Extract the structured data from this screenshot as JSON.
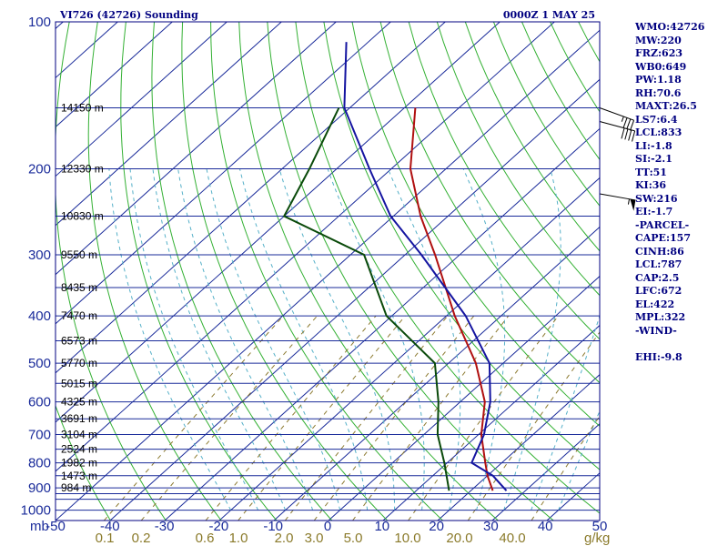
{
  "header": {
    "station": "VI726 (42726) Sounding",
    "time": "0000Z  1 MAY 25"
  },
  "stats": [
    "WMO:42726",
    "MW:220",
    "FRZ:623",
    "WB0:649",
    "PW:1.18",
    "RH:70.6",
    "MAXT:26.5",
    "LS7:6.4",
    "LCL:833",
    "LI:-1.8",
    "SI:-2.1",
    "TT:51",
    "KI:36",
    "SW:216",
    "EI:-1.7",
    "-PARCEL-",
    "CAPE:157",
    "CINH:86",
    "LCL:787",
    "CAP:2.5",
    "LFC:672",
    "EL:422",
    "MPL:322",
    "-WIND-",
    "",
    "EHI:-9.8"
  ],
  "chart_data": {
    "type": "line",
    "subtype": "skew-T log-P sounding",
    "y_axis": {
      "scale": "log",
      "unit_label": "mb",
      "ylim": [
        1000,
        100
      ],
      "ticks": [
        100,
        200,
        300,
        400,
        500,
        600,
        700,
        800,
        900,
        1000
      ],
      "tick_labels": [
        "100",
        "200",
        "300",
        "400",
        "500",
        "600",
        "700",
        "800",
        "900",
        "1000"
      ]
    },
    "x_axis": {
      "xlim": [
        -50,
        50
      ],
      "ticks": [
        -50,
        -40,
        -30,
        -20,
        -10,
        0,
        10,
        20,
        30,
        40,
        50
      ],
      "tick_labels": [
        "-50",
        "-40",
        "-30",
        "-20",
        "-10",
        "0",
        "10",
        "20",
        "30",
        "40",
        "50"
      ],
      "skewed": true
    },
    "mixing_ratio_axis": {
      "unit_label": "g/kg",
      "tick_labels": [
        "0.1",
        "0.2",
        "0.6",
        "1.0",
        "2.0",
        "3.0",
        "5.0",
        "10.0",
        "20.0",
        "40.0"
      ]
    },
    "isobars": [
      100,
      150,
      200,
      250,
      300,
      350,
      400,
      450,
      500,
      550,
      600,
      650,
      700,
      750,
      800,
      850,
      900,
      925,
      950,
      1000
    ],
    "height_labels": [
      {
        "pressure": 150,
        "label": "14150 m"
      },
      {
        "pressure": 200,
        "label": "12330 m"
      },
      {
        "pressure": 250,
        "label": "10830 m"
      },
      {
        "pressure": 300,
        "label": "9550 m"
      },
      {
        "pressure": 350,
        "label": "8435 m"
      },
      {
        "pressure": 400,
        "label": "7470 m"
      },
      {
        "pressure": 450,
        "label": "6573 m"
      },
      {
        "pressure": 500,
        "label": "5770 m"
      },
      {
        "pressure": 550,
        "label": "5015 m"
      },
      {
        "pressure": 600,
        "label": "4325 m"
      },
      {
        "pressure": 650,
        "label": "3691 m"
      },
      {
        "pressure": 700,
        "label": "3104 m"
      },
      {
        "pressure": 750,
        "label": "2524 m"
      },
      {
        "pressure": 800,
        "label": "1982 m"
      },
      {
        "pressure": 850,
        "label": "1473 m"
      },
      {
        "pressure": 900,
        "label": "984 m"
      }
    ],
    "series": [
      {
        "color": "#b01010",
        "values": [
          {
            "p": 912,
            "t": 24.0
          },
          {
            "p": 850,
            "t": 20.0
          },
          {
            "p": 800,
            "t": 17.0
          },
          {
            "p": 700,
            "t": 10.5
          },
          {
            "p": 600,
            "t": 4.5
          },
          {
            "p": 500,
            "t": -5.0
          },
          {
            "p": 400,
            "t": -18.5
          },
          {
            "p": 300,
            "t": -34.5
          },
          {
            "p": 250,
            "t": -45.0
          },
          {
            "p": 200,
            "t": -56.5
          },
          {
            "p": 150,
            "t": -68.0
          }
        ]
      },
      {
        "color": "#0a4a0a",
        "values": [
          {
            "p": 912,
            "t": 16.0
          },
          {
            "p": 800,
            "t": 9.5
          },
          {
            "p": 700,
            "t": 2.5
          },
          {
            "p": 600,
            "t": -4.0
          },
          {
            "p": 500,
            "t": -12.5
          },
          {
            "p": 400,
            "t": -31.0
          },
          {
            "p": 300,
            "t": -47.5
          },
          {
            "p": 250,
            "t": -70.0
          },
          {
            "p": 200,
            "t": -75.0
          },
          {
            "p": 150,
            "t": -82.0
          }
        ]
      },
      {
        "color": "#1414a0",
        "values": [
          {
            "p": 912,
            "t": 26.5
          },
          {
            "p": 850,
            "t": 21.0
          },
          {
            "p": 800,
            "t": 14.5
          },
          {
            "p": 700,
            "t": 11.0
          },
          {
            "p": 600,
            "t": 5.5
          },
          {
            "p": 500,
            "t": -2.5
          },
          {
            "p": 400,
            "t": -16.5
          },
          {
            "p": 300,
            "t": -37.0
          },
          {
            "p": 250,
            "t": -50.5
          },
          {
            "p": 200,
            "t": -64.0
          },
          {
            "p": 150,
            "t": -81.0
          },
          {
            "p": 110,
            "t": -94.0
          }
        ]
      }
    ],
    "wind_barbs": [
      {
        "pressure": 150,
        "direction": 290,
        "speed_kt": 35
      },
      {
        "pressure": 160,
        "direction": 285,
        "speed_kt": 40
      },
      {
        "pressure": 225,
        "direction": 280,
        "speed_kt": 55
      }
    ],
    "colors": {
      "frame": "#000080",
      "isobar": "#1a2b9a",
      "isotherm": "#1a2b9a",
      "dry_adiabat": "#33b033",
      "moist_adiabat": "#55b0c8",
      "mixing_ratio": "#8c7a30",
      "text": "#000080"
    }
  }
}
